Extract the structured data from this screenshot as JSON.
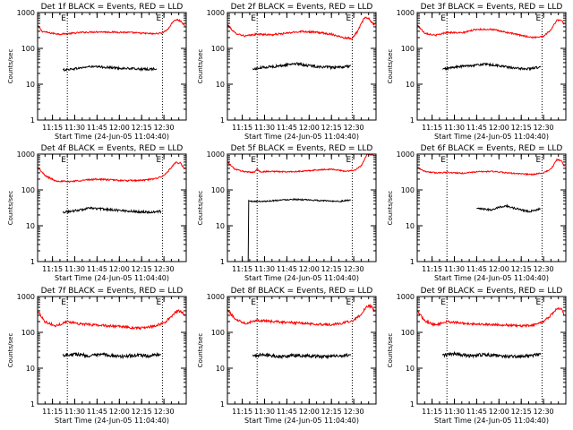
{
  "figure": {
    "width": 640,
    "height": 480,
    "background": "#ffffff",
    "grid_rows": 3,
    "grid_cols": 3
  },
  "colors": {
    "events": "#000000",
    "lld": "#ff0000",
    "axes": "#000000"
  },
  "chart_data": [
    {
      "id": "det-1f",
      "type": "line",
      "title": "Det 1f BLACK = Events, RED = LLD",
      "xlabel": "Start Time (24-Jun-05 11:04:40)",
      "ylabel": "Counts/sec",
      "xticks": [
        "11:15",
        "11:30",
        "11:45",
        "12:00",
        "12:15",
        "12:30"
      ],
      "yticks": [
        "1",
        "10",
        "100",
        "1000"
      ],
      "yscale": "log",
      "ylim": [
        1,
        1000
      ],
      "xlim_minutes": [
        0,
        100
      ],
      "xtick_minutes": [
        10,
        25,
        40,
        55,
        70,
        85
      ],
      "vlines_minutes": [
        20,
        84
      ],
      "vline_markers": [
        "E",
        "E"
      ],
      "series": [
        {
          "name": "LLD",
          "color": "#ff0000",
          "noise": 0.05,
          "x": [
            0,
            3,
            8,
            15,
            22,
            30,
            40,
            50,
            60,
            70,
            78,
            84,
            88,
            91,
            94,
            97,
            99
          ],
          "y": [
            430,
            300,
            270,
            250,
            260,
            280,
            290,
            285,
            280,
            265,
            255,
            270,
            350,
            560,
            630,
            550,
            420
          ]
        },
        {
          "name": "Events",
          "color": "#000000",
          "noise": 0.07,
          "x": [
            17,
            25,
            35,
            45,
            55,
            65,
            72,
            80
          ],
          "y": [
            25,
            27,
            31,
            30,
            28,
            27,
            26,
            27
          ]
        }
      ]
    },
    {
      "id": "det-2f",
      "type": "line",
      "title": "Det 2f BLACK = Events, RED = LLD",
      "xlabel": "Start Time (24-Jun-05 11:04:40)",
      "ylabel": "Counts/sec",
      "xticks": [
        "11:15",
        "11:30",
        "11:45",
        "12:00",
        "12:15",
        "12:30"
      ],
      "yticks": [
        "1",
        "10",
        "100",
        "1000"
      ],
      "yscale": "log",
      "ylim": [
        1,
        1000
      ],
      "xlim_minutes": [
        0,
        100
      ],
      "xtick_minutes": [
        10,
        25,
        40,
        55,
        70,
        85
      ],
      "vlines_minutes": [
        20,
        84
      ],
      "vline_markers": [
        "E",
        "E"
      ],
      "series": [
        {
          "name": "LLD",
          "color": "#ff0000",
          "noise": 0.06,
          "x": [
            0,
            5,
            12,
            20,
            30,
            40,
            50,
            60,
            70,
            78,
            84,
            88,
            92,
            95,
            98,
            99
          ],
          "y": [
            460,
            270,
            220,
            250,
            240,
            265,
            300,
            280,
            250,
            200,
            190,
            320,
            700,
            700,
            470,
            450
          ]
        },
        {
          "name": "Events",
          "color": "#000000",
          "noise": 0.08,
          "x": [
            17,
            25,
            35,
            45,
            55,
            65,
            75,
            83
          ],
          "y": [
            26,
            30,
            32,
            38,
            33,
            30,
            29,
            33
          ]
        }
      ]
    },
    {
      "id": "det-3f",
      "type": "line",
      "title": "Det 3f BLACK = Events, RED = LLD",
      "xlabel": "Start Time (24-Jun-05 11:04:40)",
      "ylabel": "Counts/sec",
      "xticks": [
        "11:15",
        "11:30",
        "11:45",
        "12:00",
        "12:15",
        "12:30"
      ],
      "yticks": [
        "1",
        "10",
        "100",
        "1000"
      ],
      "yscale": "log",
      "ylim": [
        1,
        1000
      ],
      "xlim_minutes": [
        0,
        100
      ],
      "xtick_minutes": [
        10,
        25,
        40,
        55,
        70,
        85
      ],
      "vlines_minutes": [
        20,
        84
      ],
      "vline_markers": [
        "E",
        "E"
      ],
      "series": [
        {
          "name": "LLD",
          "color": "#ff0000",
          "noise": 0.05,
          "x": [
            0,
            5,
            12,
            20,
            30,
            40,
            50,
            60,
            70,
            78,
            85,
            90,
            94,
            97,
            99
          ],
          "y": [
            450,
            270,
            230,
            280,
            270,
            340,
            340,
            280,
            230,
            200,
            220,
            330,
            620,
            600,
            470
          ]
        },
        {
          "name": "Events",
          "color": "#000000",
          "noise": 0.07,
          "x": [
            17,
            25,
            35,
            45,
            55,
            65,
            75,
            83
          ],
          "y": [
            26,
            30,
            33,
            36,
            33,
            28,
            27,
            30
          ]
        }
      ]
    },
    {
      "id": "det-4f",
      "type": "line",
      "title": "Det 4f BLACK = Events, RED = LLD",
      "xlabel": "Start Time (24-Jun-05 11:04:40)",
      "ylabel": "Counts/sec",
      "xticks": [
        "11:15",
        "11:30",
        "11:45",
        "12:00",
        "12:15",
        "12:30"
      ],
      "yticks": [
        "1",
        "10",
        "100",
        "1000"
      ],
      "yscale": "log",
      "ylim": [
        1,
        1000
      ],
      "xlim_minutes": [
        0,
        100
      ],
      "xtick_minutes": [
        10,
        25,
        40,
        55,
        70,
        85
      ],
      "vlines_minutes": [
        20,
        84
      ],
      "vline_markers": [
        "E",
        "E"
      ],
      "series": [
        {
          "name": "LLD",
          "color": "#ff0000",
          "noise": 0.05,
          "x": [
            0,
            5,
            12,
            20,
            30,
            40,
            50,
            60,
            70,
            78,
            85,
            90,
            93,
            96,
            99
          ],
          "y": [
            430,
            250,
            180,
            170,
            185,
            200,
            190,
            180,
            185,
            200,
            250,
            420,
            580,
            560,
            380
          ]
        },
        {
          "name": "Events",
          "color": "#000000",
          "noise": 0.07,
          "x": [
            17,
            25,
            35,
            45,
            55,
            65,
            75,
            83
          ],
          "y": [
            24,
            26,
            31,
            29,
            27,
            25,
            24,
            25
          ]
        }
      ]
    },
    {
      "id": "det-5f",
      "type": "line",
      "title": "Det 5f BLACK = Events, RED = LLD",
      "xlabel": "Start Time (24-Jun-05 11:04:40)",
      "ylabel": "Counts/sec",
      "xticks": [
        "11:15",
        "11:30",
        "11:45",
        "12:00",
        "12:15",
        "12:30"
      ],
      "yticks": [
        "1",
        "10",
        "100",
        "1000"
      ],
      "yscale": "log",
      "ylim": [
        1,
        1000
      ],
      "xlim_minutes": [
        0,
        100
      ],
      "xtick_minutes": [
        10,
        25,
        40,
        55,
        70,
        85
      ],
      "vlines_minutes": [
        20,
        84
      ],
      "vline_markers": [
        "E",
        "E"
      ],
      "series": [
        {
          "name": "LLD",
          "color": "#ff0000",
          "noise": 0.04,
          "x": [
            0,
            5,
            12,
            18,
            20,
            22,
            30,
            40,
            50,
            60,
            70,
            80,
            86,
            90,
            94,
            97,
            99
          ],
          "y": [
            600,
            380,
            320,
            310,
            380,
            320,
            330,
            320,
            330,
            360,
            380,
            330,
            360,
            470,
            1000,
            950,
            900
          ]
        },
        {
          "name": "Events",
          "color": "#000000",
          "noise": 0.04,
          "x": [
            14,
            14.3,
            16,
            25,
            35,
            45,
            55,
            65,
            75,
            83
          ],
          "y": [
            1,
            50,
            48,
            48,
            52,
            55,
            52,
            50,
            48,
            52
          ]
        }
      ]
    },
    {
      "id": "det-6f",
      "type": "line",
      "title": "Det 6f BLACK = Events, RED = LLD",
      "xlabel": "Start Time (24-Jun-05 11:04:40)",
      "ylabel": "Counts/sec",
      "xticks": [
        "11:15",
        "11:30",
        "11:45",
        "12:00",
        "12:15",
        "12:30"
      ],
      "yticks": [
        "1",
        "10",
        "100",
        "1000"
      ],
      "yscale": "log",
      "ylim": [
        1,
        1000
      ],
      "xlim_minutes": [
        0,
        100
      ],
      "xtick_minutes": [
        10,
        25,
        40,
        55,
        70,
        85
      ],
      "vlines_minutes": [
        20,
        84
      ],
      "vline_markers": [
        "E",
        "E"
      ],
      "series": [
        {
          "name": "LLD",
          "color": "#ff0000",
          "noise": 0.04,
          "x": [
            0,
            5,
            12,
            20,
            30,
            40,
            50,
            60,
            70,
            78,
            85,
            90,
            94,
            97,
            99
          ],
          "y": [
            430,
            330,
            300,
            310,
            290,
            320,
            330,
            300,
            280,
            270,
            300,
            380,
            700,
            650,
            450
          ]
        },
        {
          "name": "Events",
          "color": "#000000",
          "noise": 0.06,
          "x": [
            40,
            45,
            50,
            55,
            60,
            65,
            70,
            75,
            80,
            83
          ],
          "y": [
            30,
            29,
            28,
            33,
            36,
            31,
            28,
            25,
            27,
            30
          ]
        }
      ]
    },
    {
      "id": "det-7f",
      "type": "line",
      "title": "Det 7f BLACK = Events, RED = LLD",
      "xlabel": "Start Time (24-Jun-05 11:04:40)",
      "ylabel": "Counts/sec",
      "xticks": [
        "11:15",
        "11:30",
        "11:45",
        "12:00",
        "12:15",
        "12:30"
      ],
      "yticks": [
        "1",
        "10",
        "100",
        "1000"
      ],
      "yscale": "log",
      "ylim": [
        1,
        1000
      ],
      "xlim_minutes": [
        0,
        100
      ],
      "xtick_minutes": [
        10,
        25,
        40,
        55,
        70,
        85
      ],
      "vlines_minutes": [
        20,
        84
      ],
      "vline_markers": [
        "E",
        "E"
      ],
      "series": [
        {
          "name": "LLD",
          "color": "#ff0000",
          "noise": 0.08,
          "x": [
            0,
            5,
            12,
            20,
            30,
            40,
            50,
            60,
            70,
            78,
            85,
            90,
            94,
            97,
            99
          ],
          "y": [
            400,
            200,
            150,
            200,
            170,
            160,
            150,
            140,
            130,
            150,
            180,
            280,
            400,
            380,
            290
          ]
        },
        {
          "name": "Events",
          "color": "#000000",
          "noise": 0.1,
          "x": [
            17,
            25,
            35,
            45,
            55,
            65,
            75,
            83
          ],
          "y": [
            23,
            25,
            22,
            24,
            21,
            23,
            22,
            24
          ]
        }
      ]
    },
    {
      "id": "det-8f",
      "type": "line",
      "title": "Det 8f BLACK = Events, RED = LLD",
      "xlabel": "Start Time (24-Jun-05 11:04:40)",
      "ylabel": "Counts/sec",
      "xticks": [
        "11:15",
        "11:30",
        "11:45",
        "12:00",
        "12:15",
        "12:30"
      ],
      "yticks": [
        "1",
        "10",
        "100",
        "1000"
      ],
      "yscale": "log",
      "ylim": [
        1,
        1000
      ],
      "xlim_minutes": [
        0,
        100
      ],
      "xtick_minutes": [
        10,
        25,
        40,
        55,
        70,
        85
      ],
      "vlines_minutes": [
        20,
        84
      ],
      "vline_markers": [
        "E",
        "E"
      ],
      "series": [
        {
          "name": "LLD",
          "color": "#ff0000",
          "noise": 0.08,
          "x": [
            0,
            5,
            12,
            20,
            30,
            40,
            50,
            60,
            70,
            78,
            85,
            90,
            94,
            97,
            99
          ],
          "y": [
            420,
            240,
            180,
            220,
            200,
            190,
            180,
            170,
            165,
            180,
            220,
            320,
            550,
            520,
            380
          ]
        },
        {
          "name": "Events",
          "color": "#000000",
          "noise": 0.1,
          "x": [
            17,
            25,
            35,
            45,
            55,
            65,
            75,
            83
          ],
          "y": [
            22,
            24,
            21,
            23,
            22,
            21,
            22,
            23
          ]
        }
      ]
    },
    {
      "id": "det-9f",
      "type": "line",
      "title": "Det 9f BLACK = Events, RED = LLD",
      "xlabel": "Start Time (24-Jun-05 11:04:40)",
      "ylabel": "Counts/sec",
      "xticks": [
        "11:15",
        "11:30",
        "11:45",
        "12:00",
        "12:15",
        "12:30"
      ],
      "yticks": [
        "1",
        "10",
        "100",
        "1000"
      ],
      "yscale": "log",
      "ylim": [
        1,
        1000
      ],
      "xlim_minutes": [
        0,
        100
      ],
      "xtick_minutes": [
        10,
        25,
        40,
        55,
        70,
        85
      ],
      "vlines_minutes": [
        20,
        84
      ],
      "vline_markers": [
        "E",
        "E"
      ],
      "series": [
        {
          "name": "LLD",
          "color": "#ff0000",
          "noise": 0.07,
          "x": [
            0,
            5,
            12,
            20,
            30,
            40,
            50,
            60,
            70,
            78,
            85,
            90,
            94,
            97,
            99
          ],
          "y": [
            400,
            210,
            160,
            200,
            180,
            170,
            165,
            160,
            150,
            160,
            200,
            300,
            460,
            450,
            300
          ]
        },
        {
          "name": "Events",
          "color": "#000000",
          "noise": 0.1,
          "x": [
            17,
            25,
            35,
            45,
            55,
            65,
            75,
            83
          ],
          "y": [
            23,
            25,
            22,
            24,
            22,
            21,
            22,
            24
          ]
        }
      ]
    }
  ]
}
